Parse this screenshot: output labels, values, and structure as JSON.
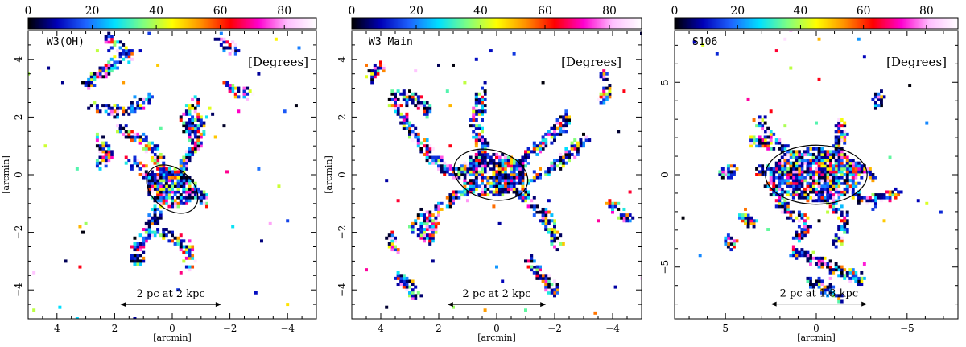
{
  "colorbar": {
    "ticks": [
      "0",
      "20",
      "40",
      "60",
      "80"
    ],
    "tick_values": [
      0,
      20,
      40,
      60,
      80
    ],
    "range": [
      0,
      90
    ],
    "colors": [
      "#000000",
      "#0000b8",
      "#1e64ff",
      "#00e0ff",
      "#80ff80",
      "#ffff00",
      "#ff9000",
      "#ff0000",
      "#ff00d0",
      "#ffc0ff",
      "#ffffff"
    ]
  },
  "chart_data": [
    {
      "type": "heatmap",
      "title": "W3(OH)",
      "units_label": "[Degrees]",
      "xlabel": "[arcmin]",
      "ylabel": "[arcmin]",
      "xlim": [
        5,
        -5
      ],
      "ylim": [
        -5,
        5
      ],
      "xticks": [
        4,
        2,
        0,
        -2,
        -4
      ],
      "xtick_labels": [
        "4",
        "2",
        "0",
        "−2",
        "−4"
      ],
      "yticks": [
        -4,
        -2,
        0,
        2,
        4
      ],
      "ytick_labels": [
        "−4",
        "−2",
        "0",
        "2",
        "4"
      ],
      "scalebar": "2 pc at 2 kpc",
      "scalebar_x": [
        1.8,
        -1.7
      ],
      "scalebar_y": -4.5,
      "ellipse": {
        "cx": 0,
        "cy": -0.5,
        "rx": 1,
        "ry": 0.7,
        "angle_deg": -40
      },
      "filaments": [
        [
          [
            0.2,
            -0.6
          ],
          [
            0.2,
            -0.1
          ],
          [
            0.6,
            0.8
          ],
          [
            1.2,
            1.3
          ],
          [
            1.8,
            1.6
          ]
        ],
        [
          [
            0.2,
            -0.6
          ],
          [
            -0.4,
            0.3
          ],
          [
            -0.8,
            1.0
          ],
          [
            -1.0,
            2.0
          ]
        ],
        [
          [
            0.2,
            -0.6
          ],
          [
            0.5,
            -1.2
          ],
          [
            0.8,
            -2.0
          ],
          [
            1.2,
            -2.4
          ],
          [
            1.2,
            -3.0
          ]
        ],
        [
          [
            0.5,
            -2.0
          ],
          [
            -0.2,
            -2.2
          ],
          [
            -0.5,
            -2.5
          ],
          [
            -0.6,
            -3.1
          ]
        ],
        [
          [
            0.3,
            -0.2
          ],
          [
            1.0,
            0.1
          ],
          [
            1.5,
            0.5
          ]
        ],
        [
          [
            -0.2,
            -0.8
          ],
          [
            -0.8,
            -0.6
          ],
          [
            -1.2,
            -0.9
          ]
        ],
        [
          [
            2.6,
            2.4
          ],
          [
            2.0,
            2.2
          ],
          [
            1.4,
            2.3
          ],
          [
            0.8,
            2.6
          ]
        ],
        [
          [
            2.9,
            3.2
          ],
          [
            2.4,
            3.6
          ],
          [
            2.0,
            3.9
          ]
        ],
        [
          [
            -0.8,
            2.5
          ],
          [
            -0.5,
            2.0
          ],
          [
            -0.6,
            1.4
          ]
        ],
        [
          [
            -1.9,
            3.2
          ],
          [
            -2.2,
            2.9
          ],
          [
            -2.6,
            2.8
          ]
        ],
        [
          [
            2.2,
            4.7
          ],
          [
            1.8,
            4.4
          ],
          [
            1.5,
            4.1
          ]
        ],
        [
          [
            -1.7,
            4.7
          ],
          [
            -1.9,
            4.5
          ],
          [
            -2.1,
            4.3
          ]
        ],
        [
          [
            2.5,
            0.4
          ],
          [
            2.2,
            0.7
          ],
          [
            2.6,
            1.2
          ]
        ]
      ]
    },
    {
      "type": "heatmap",
      "title": "W3 Main",
      "units_label": "[Degrees]",
      "xlabel": "[arcmin]",
      "ylabel": "[arcmin]",
      "xlim": [
        5,
        -5
      ],
      "ylim": [
        -5,
        5
      ],
      "xticks": [
        4,
        2,
        0,
        -2,
        -4
      ],
      "xtick_labels": [
        "4",
        "2",
        "0",
        "−2",
        "−4"
      ],
      "yticks": [
        -4,
        -2,
        0,
        2,
        4
      ],
      "ytick_labels": [
        "−4",
        "−2",
        "0",
        "2",
        "4"
      ],
      "scalebar": "2 pc at 2 kpc",
      "scalebar_x": [
        1.7,
        -1.7
      ],
      "scalebar_y": -4.5,
      "ellipse": {
        "cx": 0.2,
        "cy": 0,
        "rx": 1.3,
        "ry": 0.85,
        "angle_deg": -15
      },
      "filaments": [
        [
          [
            1.5,
            0
          ],
          [
            0.6,
            0.2
          ],
          [
            -0.4,
            0
          ],
          [
            -1.2,
            -0.2
          ],
          [
            -1.8,
            0.2
          ]
        ],
        [
          [
            1.5,
            0
          ],
          [
            2.2,
            0.6
          ],
          [
            3.0,
            1.6
          ],
          [
            3.6,
            2.6
          ]
        ],
        [
          [
            0.6,
            0.2
          ],
          [
            0.5,
            1.0
          ],
          [
            0.7,
            1.8
          ],
          [
            0.5,
            2.8
          ]
        ],
        [
          [
            -0.4,
            0
          ],
          [
            -1.2,
            0.8
          ],
          [
            -2.0,
            1.4
          ],
          [
            -2.4,
            2.0
          ]
        ],
        [
          [
            0.8,
            -0.3
          ],
          [
            1.6,
            -0.9
          ],
          [
            2.4,
            -1.6
          ],
          [
            2.6,
            -2.0
          ]
        ],
        [
          [
            -0.6,
            -0.4
          ],
          [
            -1.2,
            -1.0
          ],
          [
            -1.8,
            -1.6
          ],
          [
            -2.1,
            -2.4
          ]
        ],
        [
          [
            2.8,
            -1.8
          ],
          [
            2.3,
            -2.2
          ],
          [
            2.2,
            -1.6
          ],
          [
            2.6,
            -1.4
          ]
        ],
        [
          [
            -2.0,
            0.3
          ],
          [
            -2.6,
            0.8
          ],
          [
            -3.0,
            1.2
          ]
        ],
        [
          [
            -3.7,
            3.4
          ],
          [
            -3.8,
            2.9
          ],
          [
            -3.7,
            2.6
          ]
        ],
        [
          [
            -4.0,
            -1.0
          ],
          [
            -4.3,
            -1.4
          ],
          [
            -4.5,
            -1.5
          ]
        ],
        [
          [
            3.4,
            -3.6
          ],
          [
            3.0,
            -3.8
          ],
          [
            2.8,
            -4.2
          ]
        ],
        [
          [
            3.3,
            2.8
          ],
          [
            2.8,
            2.6
          ],
          [
            2.4,
            2.2
          ]
        ],
        [
          [
            -1.2,
            -3.0
          ],
          [
            -1.6,
            -3.6
          ],
          [
            -2.0,
            -4.0
          ]
        ],
        [
          [
            4.0,
            3.8
          ],
          [
            4.3,
            3.4
          ]
        ],
        [
          [
            3.6,
            -2.2
          ],
          [
            3.5,
            -2.6
          ]
        ]
      ]
    },
    {
      "type": "heatmap",
      "title": "S106",
      "units_label": "[Degrees]",
      "xlabel": "[arcmin]",
      "ylabel": "[arcmin]",
      "xlim": [
        7.8,
        -7.8
      ],
      "ylim": [
        -7.8,
        7.8
      ],
      "xticks": [
        5,
        0,
        -5
      ],
      "xtick_labels": [
        "5",
        "0",
        "−5"
      ],
      "yticks": [
        -5,
        0,
        5
      ],
      "ytick_labels": [
        "−5",
        "0",
        "5"
      ],
      "scalebar": "2 pc at 1.3 kpc",
      "scalebar_x": [
        2.5,
        -2.8
      ],
      "scalebar_y": -7,
      "ellipse": {
        "cx": 0,
        "cy": 0,
        "rx": 2.8,
        "ry": 1.6,
        "angle_deg": 0
      },
      "filaments": [
        [
          [
            3.0,
            0.2
          ],
          [
            1.8,
            0.0
          ],
          [
            0.6,
            -0.2
          ],
          [
            -0.8,
            0.2
          ],
          [
            -2.2,
            0.4
          ],
          [
            -3.0,
            0.0
          ]
        ],
        [
          [
            3.2,
            2.8
          ],
          [
            2.4,
            2.0
          ],
          [
            1.6,
            1.2
          ],
          [
            0.8,
            0.6
          ]
        ],
        [
          [
            -1.0,
            1.0
          ],
          [
            -1.4,
            2.0
          ],
          [
            -1.3,
            2.8
          ]
        ],
        [
          [
            2.4,
            -0.6
          ],
          [
            2.0,
            -1.4
          ],
          [
            1.4,
            -2.2
          ],
          [
            0.8,
            -2.4
          ]
        ],
        [
          [
            -0.6,
            -0.4
          ],
          [
            -0.8,
            -1.4
          ],
          [
            -1.6,
            -2.4
          ],
          [
            -1.2,
            -3.6
          ]
        ],
        [
          [
            -2.2,
            -1.2
          ],
          [
            -3.2,
            -1.4
          ],
          [
            -4.4,
            -1.0
          ]
        ],
        [
          [
            1.2,
            -4.2
          ],
          [
            0.0,
            -4.6
          ],
          [
            -1.2,
            -5.2
          ],
          [
            -2.4,
            -5.6
          ]
        ],
        [
          [
            0.2,
            -5.8
          ],
          [
            -0.6,
            -6.2
          ],
          [
            -1.2,
            -6.6
          ]
        ],
        [
          [
            4.8,
            -3.6
          ],
          [
            4.6,
            -3.8
          ]
        ],
        [
          [
            4.0,
            -2.2
          ],
          [
            3.6,
            -2.6
          ]
        ],
        [
          [
            0.6,
            -2.8
          ],
          [
            1.0,
            -3.4
          ]
        ],
        [
          [
            2.6,
            1.6
          ],
          [
            3.4,
            1.8
          ]
        ],
        [
          [
            -3.4,
            3.8
          ],
          [
            -3.5,
            4.2
          ]
        ],
        [
          [
            4.6,
            0.2
          ],
          [
            5.0,
            0.1
          ]
        ]
      ]
    }
  ]
}
